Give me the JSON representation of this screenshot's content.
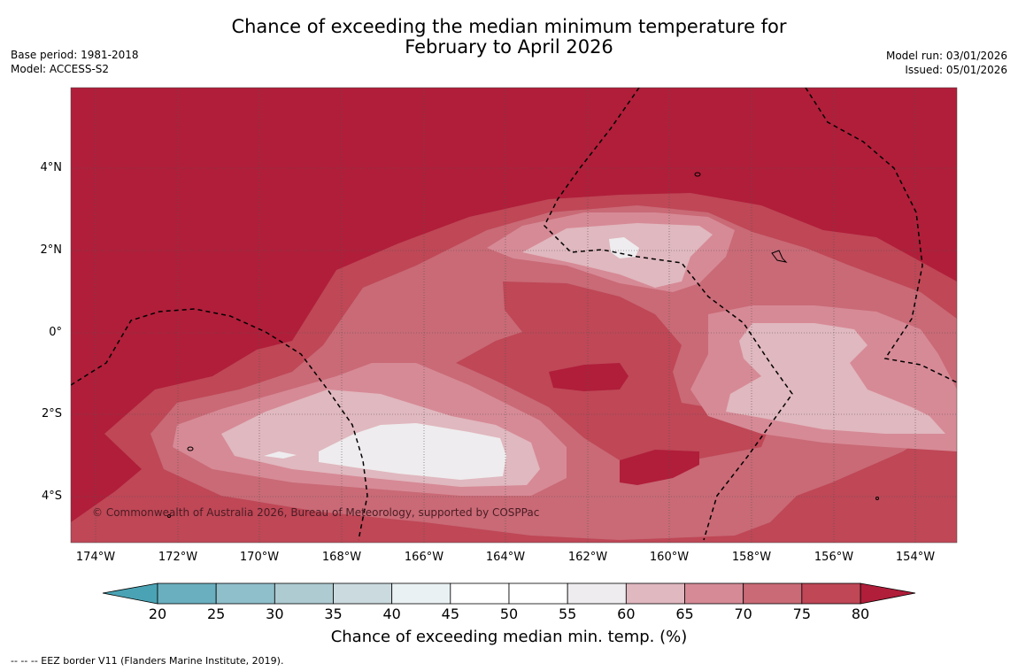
{
  "title_line1": "Chance of exceeding the median minimum temperature for",
  "title_line2": "February to April 2026",
  "base_period": "Base period: 1981-2018",
  "model": "Model: ACCESS-S2",
  "model_run": "Model run: 03/01/2026",
  "issued": "Issued: 05/01/2026",
  "copyright": "© Commonwealth of Australia 2026, Bureau of Meteorology, supported by COSPPac",
  "colorbar_title": "Chance of exceeding median min. temp. (%)",
  "footnote": "--  --  -- EEZ border V11 (Flanders Marine Institute, 2019).",
  "x_ticks": [
    "174°W",
    "172°W",
    "170°W",
    "168°W",
    "166°W",
    "164°W",
    "162°W",
    "160°W",
    "158°W",
    "156°W",
    "154°W"
  ],
  "y_ticks": [
    "4°N",
    "2°N",
    "0°",
    "2°S",
    "4°S"
  ],
  "colorbar": {
    "labels": [
      "20",
      "25",
      "30",
      "35",
      "40",
      "45",
      "50",
      "55",
      "60",
      "65",
      "70",
      "75",
      "80"
    ],
    "colors": [
      "#6aafbf",
      "#8fbfca",
      "#aecbd1",
      "#cbdade",
      "#eaf1f2",
      "#ffffff",
      "#ffffff",
      "#eeecee",
      "#e0b8bf",
      "#d68a96",
      "#c96a76",
      "#bf4756"
    ],
    "under_color": "#4aa3b4",
    "over_color": "#b01e3a"
  },
  "map_colors": {
    "c80": "#b01e3a",
    "c75": "#bf4756",
    "c70": "#c96a76",
    "c65": "#d68a96",
    "c60": "#e0b8bf",
    "c55": "#eeecee"
  }
}
